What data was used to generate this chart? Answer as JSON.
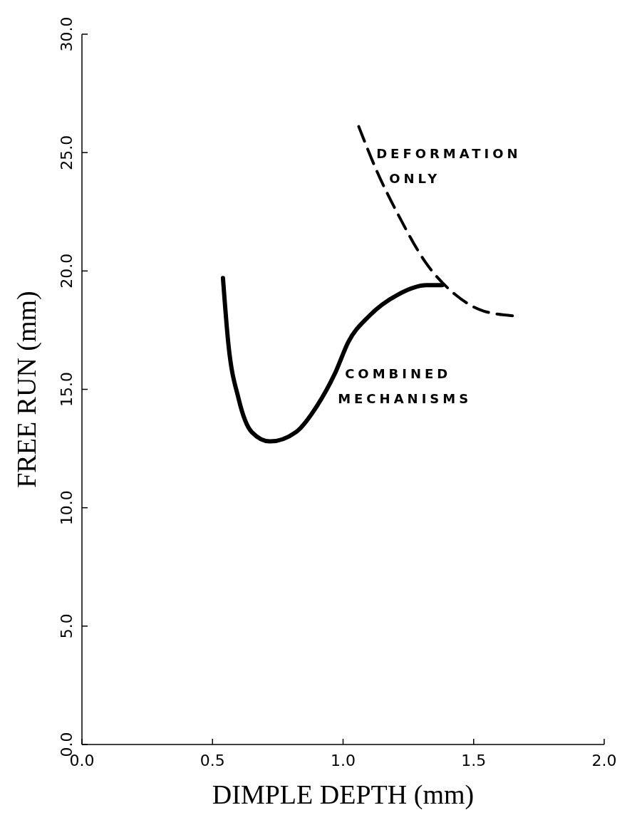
{
  "chart_data": {
    "type": "line",
    "xlabel": "DIMPLE DEPTH (mm)",
    "ylabel": "FREE RUN (mm)",
    "xlim": [
      0,
      2
    ],
    "xticks": [
      {
        "value": 0,
        "label": "0.0"
      },
      {
        "value": 0.5,
        "label": "0.5"
      },
      {
        "value": 1,
        "label": "1.0"
      },
      {
        "value": 1.5,
        "label": "1.5"
      },
      {
        "value": 2,
        "label": "2.0"
      }
    ],
    "ylim": [
      0,
      30
    ],
    "yticks": [
      {
        "value": 0,
        "label": "0.0"
      },
      {
        "value": 5,
        "label": "5.0"
      },
      {
        "value": 10,
        "label": "10.0"
      },
      {
        "value": 15,
        "label": "15.0"
      },
      {
        "value": 20,
        "label": "20.0"
      },
      {
        "value": 25,
        "label": "25.0"
      },
      {
        "value": 30,
        "label": "30.0"
      }
    ],
    "grid": false,
    "series": [
      {
        "color": "#000000",
        "line_style": "solid",
        "x": [
          0.54,
          0.56,
          0.6,
          0.65,
          0.72,
          0.82,
          0.9,
          0.97,
          1.02,
          1.1,
          1.21,
          1.32,
          1.38
        ],
        "values": [
          19.7,
          17.0,
          14.6,
          13.2,
          12.8,
          13.2,
          14.3,
          15.7,
          17.0,
          18.1,
          19.0,
          19.4,
          19.4
        ]
      },
      {
        "color": "#000000",
        "line_style": "dashed",
        "x": [
          1.06,
          1.13,
          1.21,
          1.32,
          1.43,
          1.54,
          1.66
        ],
        "values": [
          26.1,
          24.2,
          22.4,
          20.3,
          19.0,
          18.3,
          18.1
        ]
      }
    ],
    "annotations": [
      {
        "text": "DEFORMATION\nONLY",
        "x": 1.1,
        "y": 25.0
      },
      {
        "text": "COMBINED\nMECHANISMS",
        "x": 0.98,
        "y": 15.7
      }
    ]
  }
}
